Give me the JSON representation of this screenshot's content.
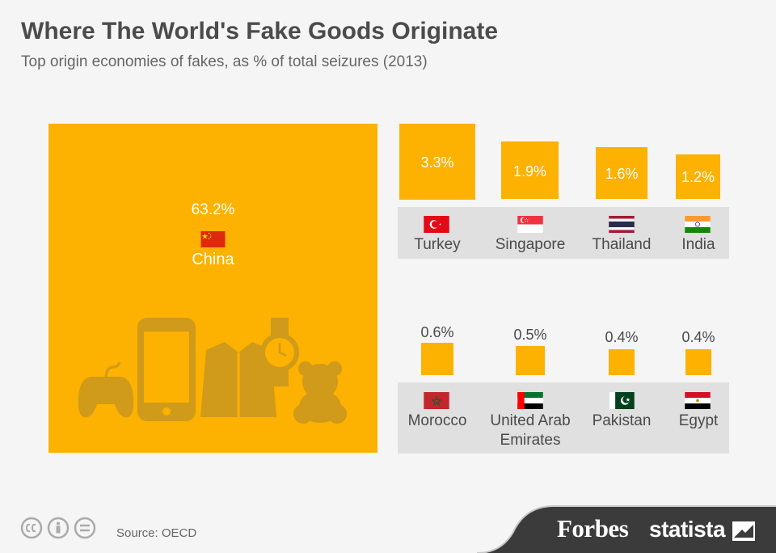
{
  "title": "Where The World's Fake Goods Originate",
  "subtitle": "Top origin economies of fakes, as % of total seizures (2013)",
  "source": "Source: OECD",
  "brands": {
    "forbes": "Forbes",
    "statista": "statista"
  },
  "colors": {
    "accent": "#fdb100",
    "band": "#e0e0e0",
    "text": "#4a4a4a",
    "footer": "#3b3b3b"
  },
  "icons": [
    "game-controller-icon",
    "smartphone-icon",
    "jacket-icon",
    "wristwatch-icon",
    "teddy-bear-icon",
    "cc-icon",
    "by-icon",
    "nd-icon",
    "statista-logo-icon"
  ],
  "chart_data": {
    "type": "area-proportional squares",
    "unit": "%",
    "items": [
      {
        "country": "China",
        "label": "63.2%",
        "value": 63.2,
        "flag": "china-flag"
      },
      {
        "country": "Turkey",
        "label": "3.3%",
        "value": 3.3,
        "flag": "turkey-flag"
      },
      {
        "country": "Singapore",
        "label": "1.9%",
        "value": 1.9,
        "flag": "singapore-flag"
      },
      {
        "country": "Thailand",
        "label": "1.6%",
        "value": 1.6,
        "flag": "thailand-flag"
      },
      {
        "country": "India",
        "label": "1.2%",
        "value": 1.2,
        "flag": "india-flag"
      },
      {
        "country": "Morocco",
        "label": "0.6%",
        "value": 0.6,
        "flag": "morocco-flag"
      },
      {
        "country": "United Arab Emirates",
        "label": "0.5%",
        "value": 0.5,
        "flag": "uae-flag"
      },
      {
        "country": "Pakistan",
        "label": "0.4%",
        "value": 0.4,
        "flag": "pakistan-flag"
      },
      {
        "country": "Egypt",
        "label": "0.4%",
        "value": 0.4,
        "flag": "egypt-flag"
      }
    ]
  }
}
